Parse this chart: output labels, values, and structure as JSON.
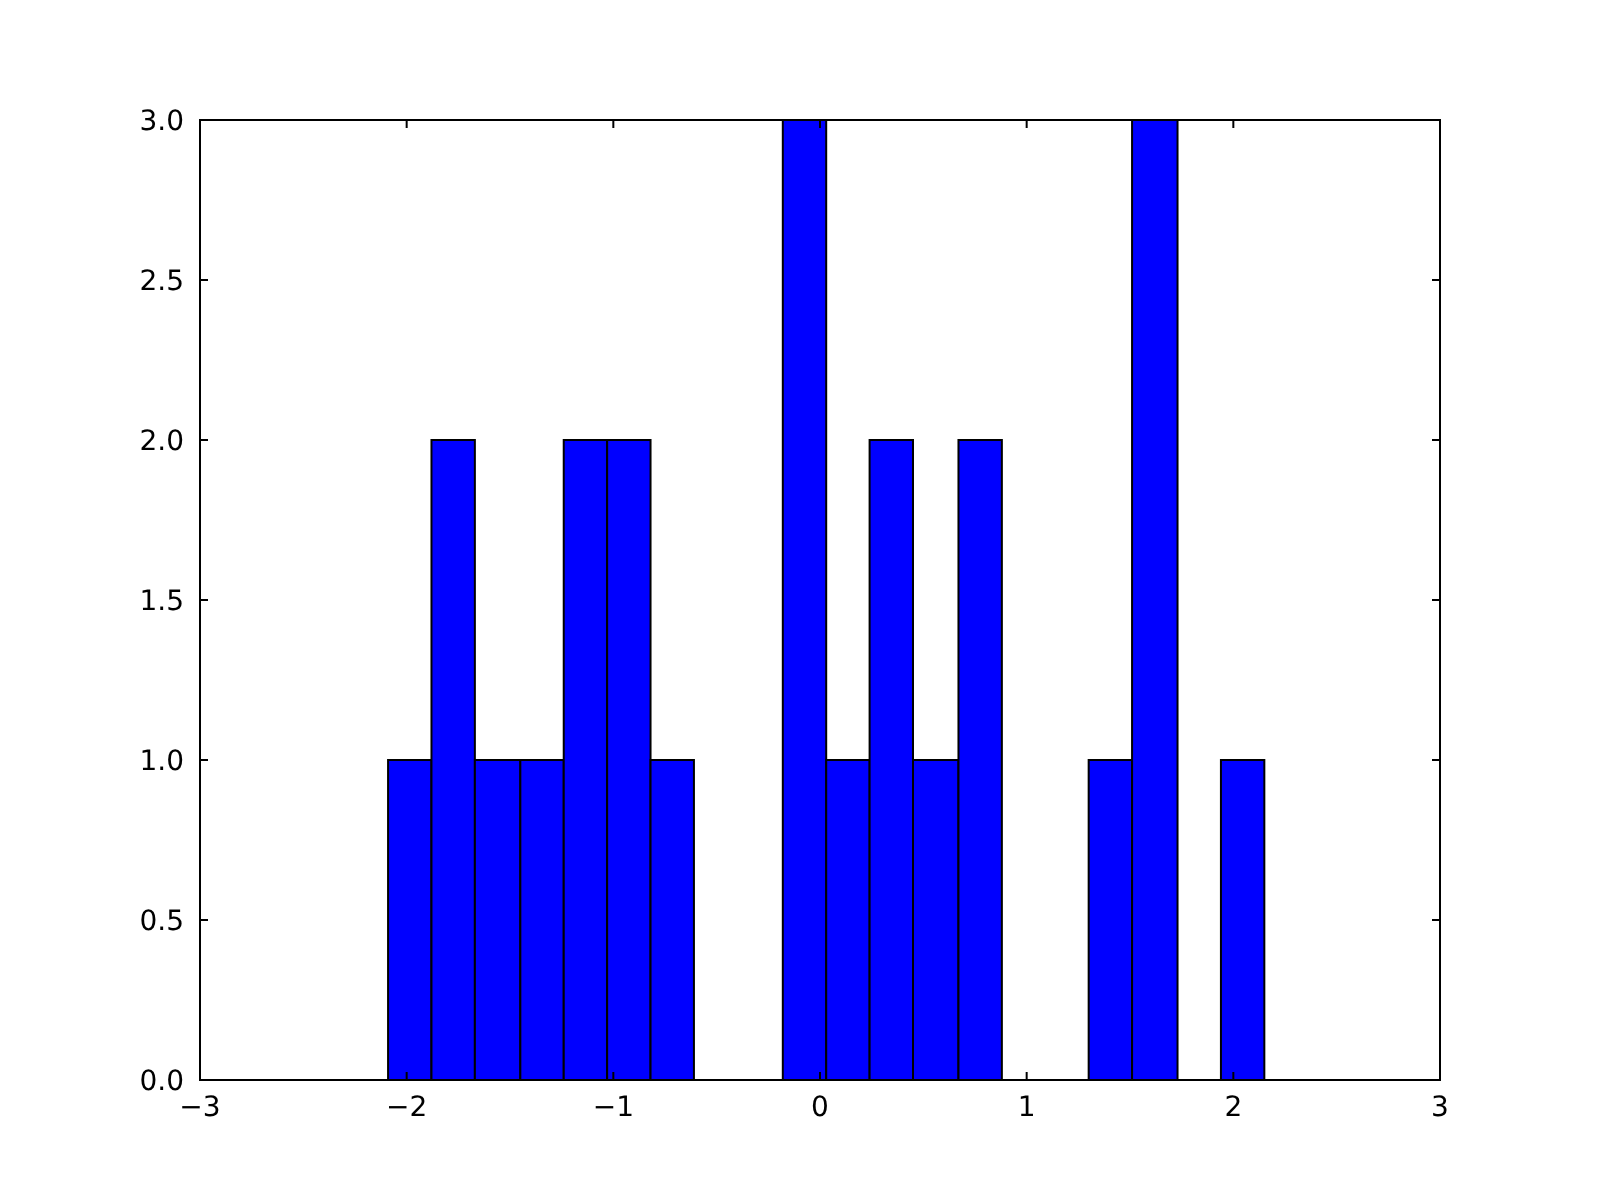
{
  "chart_data": {
    "type": "histogram",
    "color": "#0000ff",
    "bins": [
      -2.09,
      -1.88,
      -1.67,
      -1.45,
      -1.24,
      -1.03,
      -0.82,
      -0.61,
      -0.18,
      0.03,
      0.24,
      0.45,
      0.67,
      0.88,
      1.3,
      1.51,
      1.73,
      1.94,
      2.15
    ],
    "values": [
      1,
      2,
      1,
      1,
      2,
      2,
      1,
      0,
      3,
      1,
      2,
      1,
      2,
      0,
      1,
      3,
      0,
      1
    ],
    "xlim": [
      -3,
      3
    ],
    "xticks": [
      {
        "value": -3,
        "label": "−3"
      },
      {
        "value": -2,
        "label": "−2"
      },
      {
        "value": -1,
        "label": "−1"
      },
      0,
      1,
      2,
      3
    ],
    "ylim": [
      0,
      3
    ],
    "yticks": [
      {
        "value": 0,
        "label": "0.0"
      },
      {
        "value": 0.5,
        "label": "0.5"
      },
      {
        "value": 1,
        "label": "1.0"
      },
      {
        "value": 1.5,
        "label": "1.5"
      },
      {
        "value": 2,
        "label": "2.0"
      },
      {
        "value": 2.5,
        "label": "2.5"
      },
      {
        "value": 3,
        "label": "3.0"
      }
    ],
    "grid": false
  }
}
